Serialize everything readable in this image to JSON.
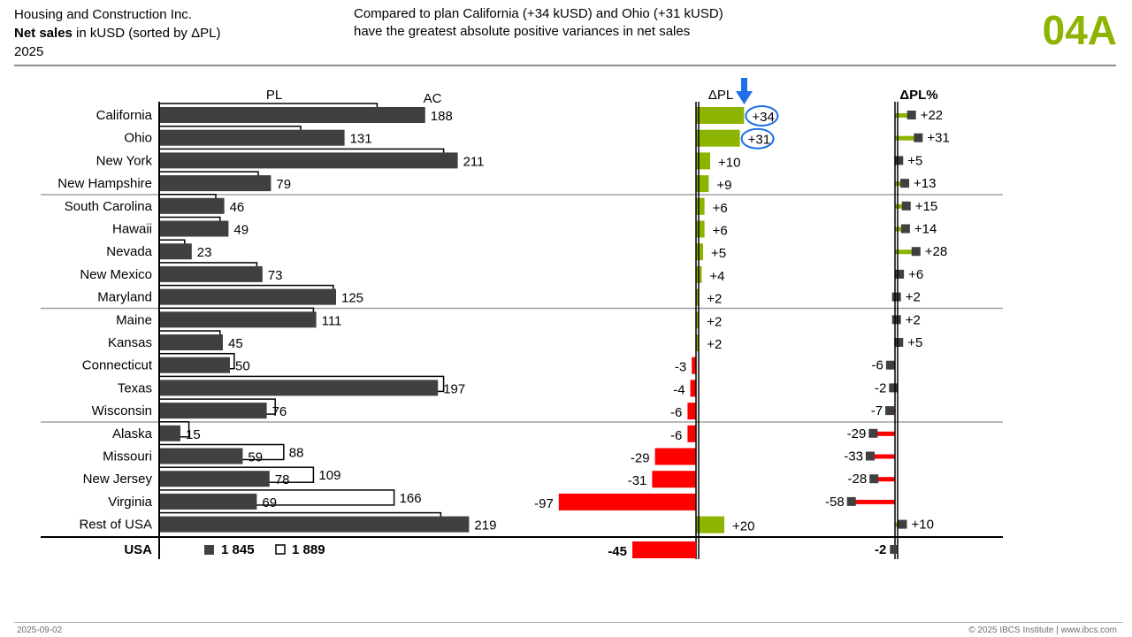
{
  "header": {
    "company": "Housing and Construction Inc.",
    "measure_bold": "Net sales",
    "measure_rest": " in kUSD (sorted by ΔPL)",
    "period": "2025",
    "message_line1": "Compared to plan California (+34 kUSD) and Ohio (+31 kUSD)",
    "message_line2": "have the greatest absolute positive variances in net sales",
    "page_id": "04A",
    "page_id_color": "#8cb400"
  },
  "footer": {
    "date": "2025-09-02",
    "copyright": "© 2025 IBCS Institute | www.ibcs.com"
  },
  "colors": {
    "actual": "#404040",
    "positive": "#8cb400",
    "negative": "#ff0000",
    "highlight": "#1e6fe8",
    "separator": "#a0a0a0"
  },
  "chart_data": {
    "type": "bar",
    "column_headers": {
      "pl": "PL",
      "ac": "AC",
      "dpl": "ΔPL",
      "dpl_pct": "ΔPL%"
    },
    "categories": [
      "California",
      "Ohio",
      "New York",
      "New Hampshire",
      "South Carolina",
      "Hawaii",
      "Nevada",
      "New Mexico",
      "Maryland",
      "Maine",
      "Kansas",
      "Connecticut",
      "Texas",
      "Wisconsin",
      "Alaska",
      "Missouri",
      "New Jersey",
      "Virginia",
      "Rest of USA"
    ],
    "series": [
      {
        "name": "AC",
        "values": [
          188,
          131,
          211,
          79,
          46,
          49,
          23,
          73,
          125,
          111,
          45,
          50,
          197,
          76,
          15,
          59,
          78,
          69,
          219
        ]
      },
      {
        "name": "PL",
        "values": [
          154,
          100,
          201,
          70,
          40,
          43,
          18,
          69,
          123,
          109,
          43,
          53,
          201,
          82,
          21,
          88,
          109,
          166,
          199
        ]
      },
      {
        "name": "ΔPL",
        "values": [
          34,
          31,
          10,
          9,
          6,
          6,
          5,
          4,
          2,
          2,
          2,
          -3,
          -4,
          -6,
          -6,
          -29,
          -31,
          -97,
          20
        ]
      },
      {
        "name": "ΔPL%",
        "values": [
          22,
          31,
          5,
          13,
          15,
          14,
          28,
          6,
          2,
          2,
          5,
          -6,
          -2,
          -7,
          -29,
          -33,
          -28,
          -58,
          10
        ]
      }
    ],
    "plan_labels": [
      "",
      "",
      "",
      "",
      "",
      "",
      "",
      "",
      "",
      "",
      "",
      "",
      "",
      "",
      "",
      "88",
      "109",
      "166",
      ""
    ],
    "group_separators_after": [
      3,
      8,
      13
    ],
    "highlighted": [
      "California",
      "Ohio"
    ],
    "total": {
      "label": "USA",
      "legend_ac_symbol": "■",
      "legend_ac_value": "1 845",
      "legend_pl_symbol": "□",
      "legend_pl_value": "1 889",
      "dpl": -45,
      "dpl_pct": -2
    }
  }
}
